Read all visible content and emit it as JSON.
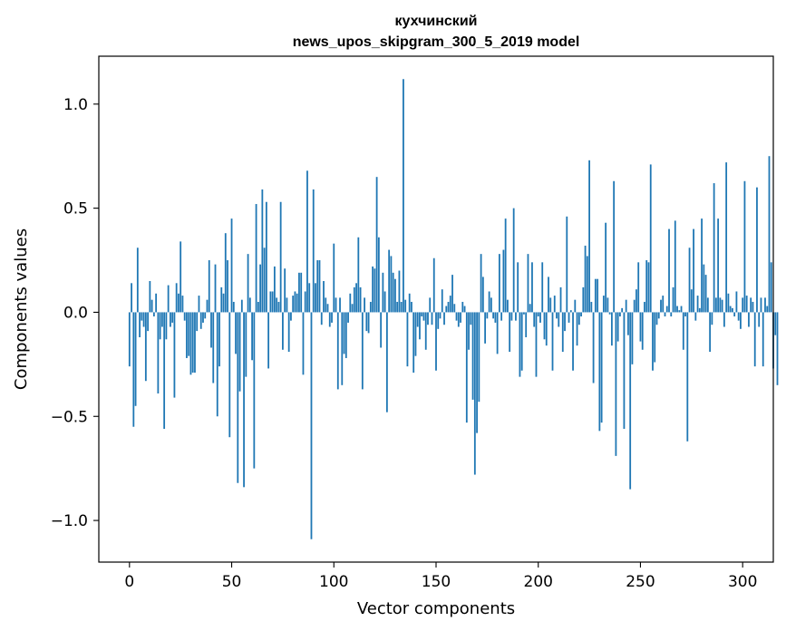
{
  "chart_data": {
    "type": "bar",
    "title": "кухчинский",
    "subtitle": "news_upos_skipgram_300_5_2019 model",
    "xlabel": "Vector components",
    "ylabel": "Components values",
    "xlim": [
      -15,
      315
    ],
    "ylim": [
      -1.2,
      1.23
    ],
    "x_ticks": [
      0,
      50,
      100,
      150,
      200,
      250,
      300
    ],
    "y_ticks": [
      -1.0,
      -0.5,
      0.0,
      0.5,
      1.0
    ],
    "x_tick_labels": [
      "0",
      "50",
      "100",
      "150",
      "200",
      "250",
      "300"
    ],
    "y_tick_labels": [
      "−1.0",
      "−0.5",
      "0.0",
      "0.5",
      "1.0"
    ],
    "bar_color": "#1f77b4",
    "values": [
      -0.26,
      0.14,
      -0.55,
      -0.45,
      0.31,
      -0.12,
      -0.04,
      -0.07,
      -0.33,
      -0.09,
      0.15,
      0.06,
      -0.02,
      0.09,
      -0.39,
      -0.13,
      -0.07,
      -0.56,
      -0.13,
      0.13,
      -0.07,
      -0.05,
      -0.41,
      0.14,
      0.09,
      0.34,
      0.08,
      -0.04,
      -0.22,
      -0.21,
      -0.3,
      -0.29,
      -0.29,
      -0.09,
      0.08,
      -0.08,
      -0.05,
      -0.03,
      0.06,
      0.25,
      -0.17,
      -0.34,
      0.23,
      -0.5,
      -0.26,
      0.12,
      0.09,
      0.38,
      0.25,
      -0.6,
      0.45,
      0.05,
      -0.2,
      -0.82,
      -0.38,
      0.06,
      -0.84,
      -0.31,
      0.28,
      0.07,
      -0.23,
      -0.75,
      0.52,
      0.05,
      0.23,
      0.59,
      0.31,
      0.53,
      -0.27,
      0.1,
      0.1,
      0.22,
      0.07,
      0.05,
      0.53,
      -0.18,
      0.21,
      0.07,
      -0.19,
      -0.04,
      0.08,
      0.1,
      0.09,
      0.19,
      0.19,
      -0.3,
      0.1,
      0.68,
      0.14,
      -1.09,
      0.59,
      0.14,
      0.25,
      0.25,
      -0.06,
      0.15,
      0.07,
      0.04,
      -0.07,
      -0.05,
      0.33,
      0.07,
      -0.37,
      0.07,
      -0.35,
      -0.2,
      -0.22,
      -0.05,
      0.09,
      0.04,
      0.12,
      0.14,
      0.36,
      0.12,
      -0.37,
      0.07,
      -0.09,
      -0.1,
      0.05,
      0.22,
      0.21,
      0.65,
      0.36,
      -0.17,
      0.19,
      0.1,
      -0.48,
      0.3,
      0.27,
      0.19,
      0.16,
      0.05,
      0.2,
      0.05,
      1.12,
      0.06,
      -0.26,
      0.09,
      0.05,
      -0.29,
      -0.21,
      -0.07,
      -0.13,
      -0.02,
      -0.04,
      -0.18,
      -0.06,
      0.07,
      -0.06,
      0.26,
      -0.28,
      -0.08,
      -0.03,
      0.11,
      -0.06,
      0.03,
      0.05,
      0.08,
      0.18,
      0.04,
      -0.04,
      -0.07,
      -0.05,
      0.05,
      0.03,
      -0.53,
      -0.18,
      -0.06,
      -0.42,
      -0.78,
      -0.58,
      -0.43,
      0.28,
      0.17,
      -0.15,
      -0.03,
      0.1,
      0.07,
      -0.03,
      -0.05,
      -0.2,
      0.28,
      -0.04,
      0.3,
      0.45,
      0.06,
      -0.19,
      -0.04,
      0.5,
      -0.04,
      0.24,
      -0.31,
      -0.28,
      -0.01,
      -0.12,
      0.28,
      0.04,
      0.24,
      -0.07,
      -0.31,
      -0.02,
      -0.05,
      0.24,
      -0.13,
      -0.16,
      0.17,
      0.07,
      -0.28,
      0.08,
      -0.03,
      -0.07,
      0.12,
      -0.19,
      -0.09,
      0.46,
      -0.05,
      0.01,
      -0.28,
      0.06,
      -0.16,
      -0.06,
      -0.02,
      0.12,
      0.32,
      0.27,
      0.73,
      0.05,
      -0.34,
      0.16,
      0.16,
      -0.57,
      -0.53,
      0.08,
      0.43,
      0.07,
      -0.01,
      -0.16,
      0.63,
      -0.69,
      -0.14,
      -0.02,
      0.02,
      -0.56,
      0.06,
      -0.11,
      -0.85,
      -0.25,
      0.06,
      0.11,
      0.24,
      -0.14,
      -0.18,
      0.05,
      0.25,
      0.24,
      0.71,
      -0.28,
      -0.24,
      -0.06,
      -0.03,
      0.06,
      0.08,
      -0.02,
      0.03,
      0.4,
      -0.02,
      0.12,
      0.44,
      0.03,
      0.01,
      0.03,
      -0.18,
      -0.02,
      -0.62,
      0.31,
      0.11,
      0.4,
      -0.04,
      0.08,
      0.02,
      0.45,
      0.23,
      0.18,
      0.07,
      -0.19,
      -0.06,
      0.62,
      0.07,
      0.45,
      0.07,
      0.06,
      -0.07,
      0.72,
      0.09,
      0.03,
      0.02,
      -0.02,
      0.1,
      -0.04,
      -0.08,
      0.07,
      0.63,
      0.08,
      -0.07,
      0.07,
      0.05,
      -0.26,
      0.6,
      -0.07,
      0.07,
      -0.26,
      0.07,
      0.03,
      0.75,
      0.24,
      -0.27,
      -0.11,
      -0.35
    ]
  }
}
